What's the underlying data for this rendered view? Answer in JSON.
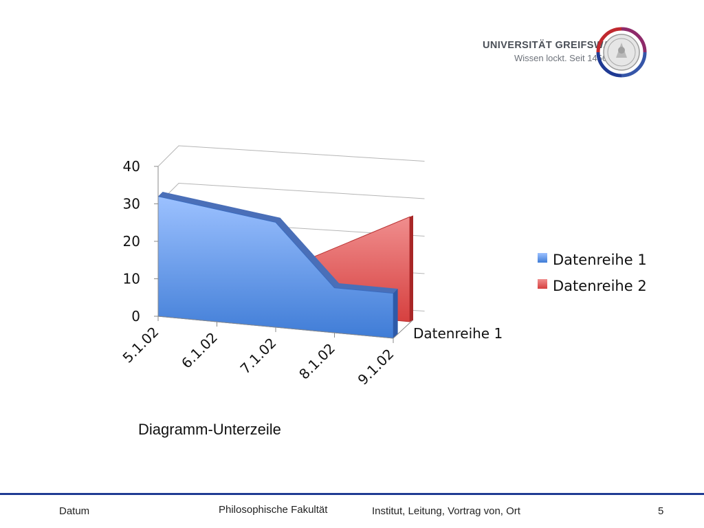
{
  "logo": {
    "name": "UNIVERSITÄT GREIFSWALD",
    "tagline": "Wissen lockt. Seit 1456"
  },
  "chart_data": {
    "type": "area",
    "subtype": "3d",
    "categories": [
      "5.1.02",
      "6.1.02",
      "7.1.02",
      "8.1.02",
      "9.1.02"
    ],
    "series": [
      {
        "name": "Datenreihe 1",
        "values": [
          32,
          30,
          28,
          12,
          12
        ],
        "color": "#4f8ce0"
      },
      {
        "name": "Datenreihe 2",
        "values": [
          null,
          null,
          12,
          20,
          28
        ],
        "color": "#e05a5a"
      }
    ],
    "depth_axis_label": "Datenreihe 1",
    "ylim": [
      0,
      40
    ],
    "yticks": [
      0,
      10,
      20,
      30,
      40
    ],
    "grid": true,
    "legend_position": "right"
  },
  "subtitle": "Diagramm-Unterzeile",
  "footer": {
    "date": "Datum",
    "faculty": "Philosophische Fakultät",
    "institute": "Institut, Leitung, Vortrag von, Ort",
    "page": "5"
  }
}
